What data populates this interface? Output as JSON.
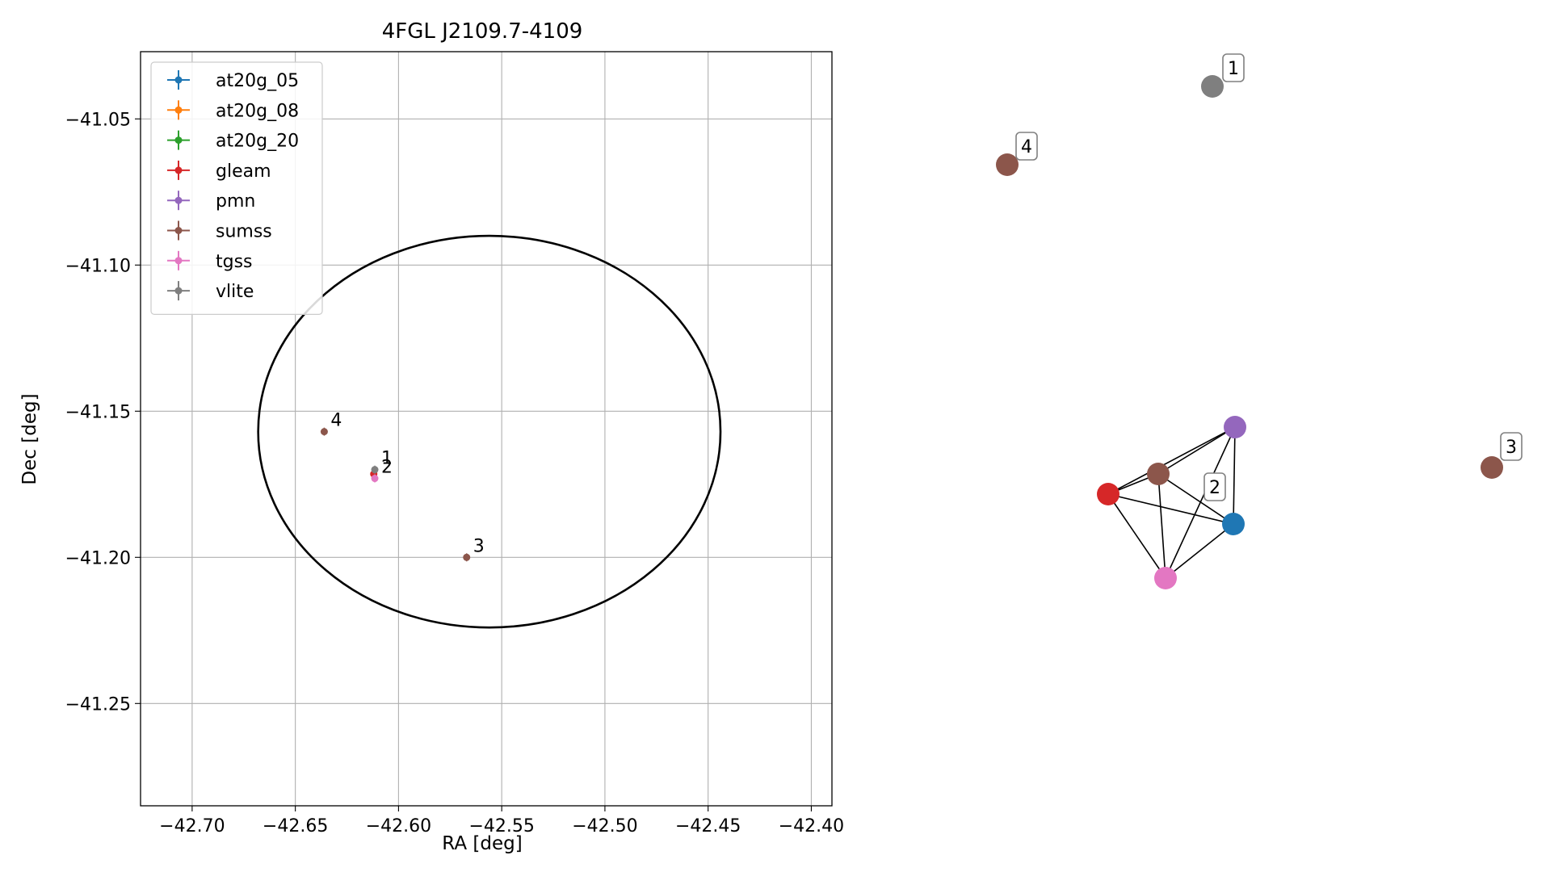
{
  "chart_data": [
    {
      "type": "scatter",
      "title": "4FGL J2109.7-4109",
      "xlabel": "RA [deg]",
      "ylabel": "Dec [deg]",
      "xlim": [
        -42.725,
        -42.39
      ],
      "ylim": [
        -41.285,
        -41.027
      ],
      "xticks": [
        -42.7,
        -42.65,
        -42.6,
        -42.55,
        -42.5,
        -42.45,
        -42.4
      ],
      "xtick_labels": [
        "−42.70",
        "−42.65",
        "−42.60",
        "−42.55",
        "−42.50",
        "−42.45",
        "−42.40"
      ],
      "yticks": [
        -41.05,
        -41.1,
        -41.15,
        -41.2,
        -41.25
      ],
      "ytick_labels": [
        "−41.05",
        "−41.10",
        "−41.15",
        "−41.20",
        "−41.25"
      ],
      "grid": true,
      "legend_position": "upper-left",
      "ellipse": {
        "center": [
          -42.556,
          -41.157
        ],
        "semi_axis_ra": 0.112,
        "semi_axis_dec": 0.067,
        "color": "#000000"
      },
      "series": [
        {
          "name": "at20g_05",
          "color": "#1f77b4",
          "points": []
        },
        {
          "name": "at20g_08",
          "color": "#ff7f0e",
          "points": []
        },
        {
          "name": "at20g_20",
          "color": "#2ca02c",
          "points": []
        },
        {
          "name": "gleam",
          "color": "#d62728",
          "points": [
            {
              "x": -42.612,
              "y": -41.1715
            }
          ]
        },
        {
          "name": "pmn",
          "color": "#9467bd",
          "points": []
        },
        {
          "name": "sumss",
          "color": "#8c564b",
          "points": [
            {
              "x": -42.636,
              "y": -41.157
            },
            {
              "x": -42.567,
              "y": -41.2
            }
          ]
        },
        {
          "name": "tgss",
          "color": "#e377c2",
          "points": [
            {
              "x": -42.6115,
              "y": -41.173
            }
          ]
        },
        {
          "name": "vlite",
          "color": "#7f7f7f",
          "points": [
            {
              "x": -42.6115,
              "y": -41.17
            }
          ]
        }
      ],
      "annotations": [
        {
          "text": "4",
          "x": -42.636,
          "y": -41.157
        },
        {
          "text": "1",
          "x": -42.6115,
          "y": -41.17
        },
        {
          "text": "2",
          "x": -42.6115,
          "y": -41.173
        },
        {
          "text": "3",
          "x": -42.567,
          "y": -41.2
        }
      ]
    },
    {
      "type": "network",
      "nodes": [
        {
          "id": "vlite",
          "color": "#7f7f7f",
          "label": "1"
        },
        {
          "id": "sumss-4",
          "color": "#8c564b",
          "label": "4"
        },
        {
          "id": "pmn",
          "color": "#9467bd",
          "label": ""
        },
        {
          "id": "sumss-2",
          "color": "#8c564b",
          "label": ""
        },
        {
          "id": "gleam",
          "color": "#d62728",
          "label": ""
        },
        {
          "id": "at20g",
          "color": "#1f77b4",
          "label": ""
        },
        {
          "id": "tgss",
          "color": "#e377c2",
          "label": ""
        },
        {
          "id": "sumss-3",
          "color": "#8c564b",
          "label": "3"
        }
      ],
      "edges": [
        [
          "pmn",
          "sumss-2"
        ],
        [
          "pmn",
          "gleam"
        ],
        [
          "pmn",
          "at20g"
        ],
        [
          "pmn",
          "tgss"
        ],
        [
          "sumss-2",
          "gleam"
        ],
        [
          "sumss-2",
          "at20g"
        ],
        [
          "sumss-2",
          "tgss"
        ],
        [
          "gleam",
          "at20g"
        ],
        [
          "gleam",
          "tgss"
        ],
        [
          "at20g",
          "tgss"
        ]
      ],
      "group_labels": [
        {
          "text": "2"
        }
      ]
    }
  ]
}
